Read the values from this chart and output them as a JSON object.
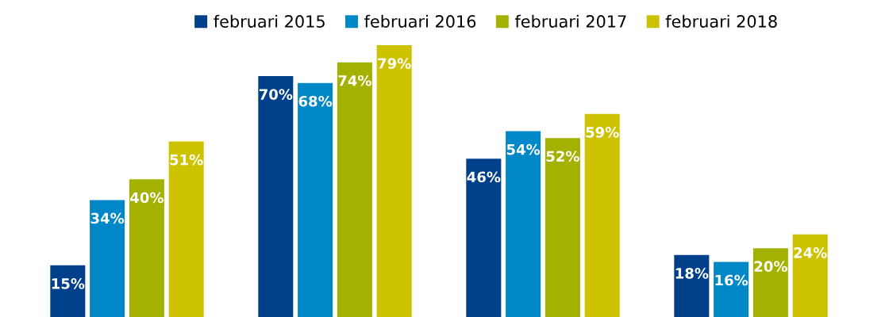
{
  "chart_data": {
    "type": "bar",
    "categories": [
      null,
      null,
      null,
      null
    ],
    "series": [
      {
        "name": "februari 2015",
        "color": "#00408a",
        "values": [
          15,
          70,
          46,
          18
        ],
        "value_labels": [
          "15%",
          "70%",
          "46%",
          "18%"
        ]
      },
      {
        "name": "februari 2016",
        "color": "#0087c8",
        "values": [
          34,
          68,
          54,
          16
        ],
        "value_labels": [
          "34%",
          "68%",
          "54%",
          "16%"
        ]
      },
      {
        "name": "februari 2017",
        "color": "#a3b100",
        "values": [
          40,
          74,
          52,
          20
        ],
        "value_labels": [
          "40%",
          "74%",
          "52%",
          "20%"
        ]
      },
      {
        "name": "februari 2018",
        "color": "#cdc200",
        "values": [
          51,
          79,
          59,
          24
        ],
        "value_labels": [
          "51%",
          "79%",
          "59%",
          "24%"
        ]
      }
    ],
    "legend": "top",
    "grid": false
  }
}
